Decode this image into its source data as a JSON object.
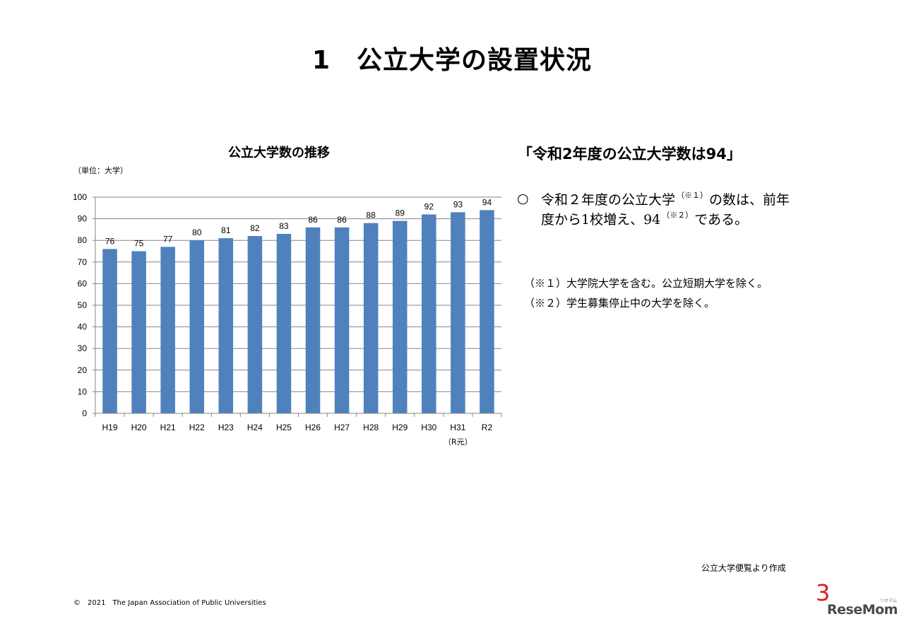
{
  "slide": {
    "title": "1　公立大学の設置状況",
    "unit_label": "（単位：大学）",
    "source": "公立大学便覧より作成",
    "copyright": "©　2021　The Japan Association of Public Universities",
    "page_number": "3",
    "watermark": "ReseMom",
    "watermark_ruby": "リセマム"
  },
  "summary": {
    "heading": "「令和2年度の公立大学数は94」",
    "bullet_mark": "○",
    "line1_a": "令和２年度の公立大学",
    "line1_sup": "（※１）",
    "line1_b": "の数は、前年",
    "line2_a": "度から1校増え、94",
    "line2_sup": "（※２）",
    "line2_b": "である。",
    "note1": "（※１）大学院大学を含む。公立短期大学を除く。",
    "note2": "（※２）学生募集停止中の大学を除く。"
  },
  "chart_data": {
    "type": "bar",
    "title": "公立大学数の推移",
    "categories": [
      "H19",
      "H20",
      "H21",
      "H22",
      "H23",
      "H24",
      "H25",
      "H26",
      "H27",
      "H28",
      "H29",
      "H30",
      "H31",
      "R2"
    ],
    "category_sublabels": {
      "H31": "（R元）"
    },
    "values": [
      76,
      75,
      77,
      80,
      81,
      82,
      83,
      86,
      86,
      88,
      89,
      92,
      93,
      94
    ],
    "ylim": [
      0,
      100
    ],
    "yticks": [
      0,
      10,
      20,
      30,
      40,
      50,
      60,
      70,
      80,
      90,
      100
    ],
    "xlabel": "",
    "ylabel": "",
    "grid": true,
    "bar_color": "#4f81bd",
    "grid_color": "#868686"
  }
}
